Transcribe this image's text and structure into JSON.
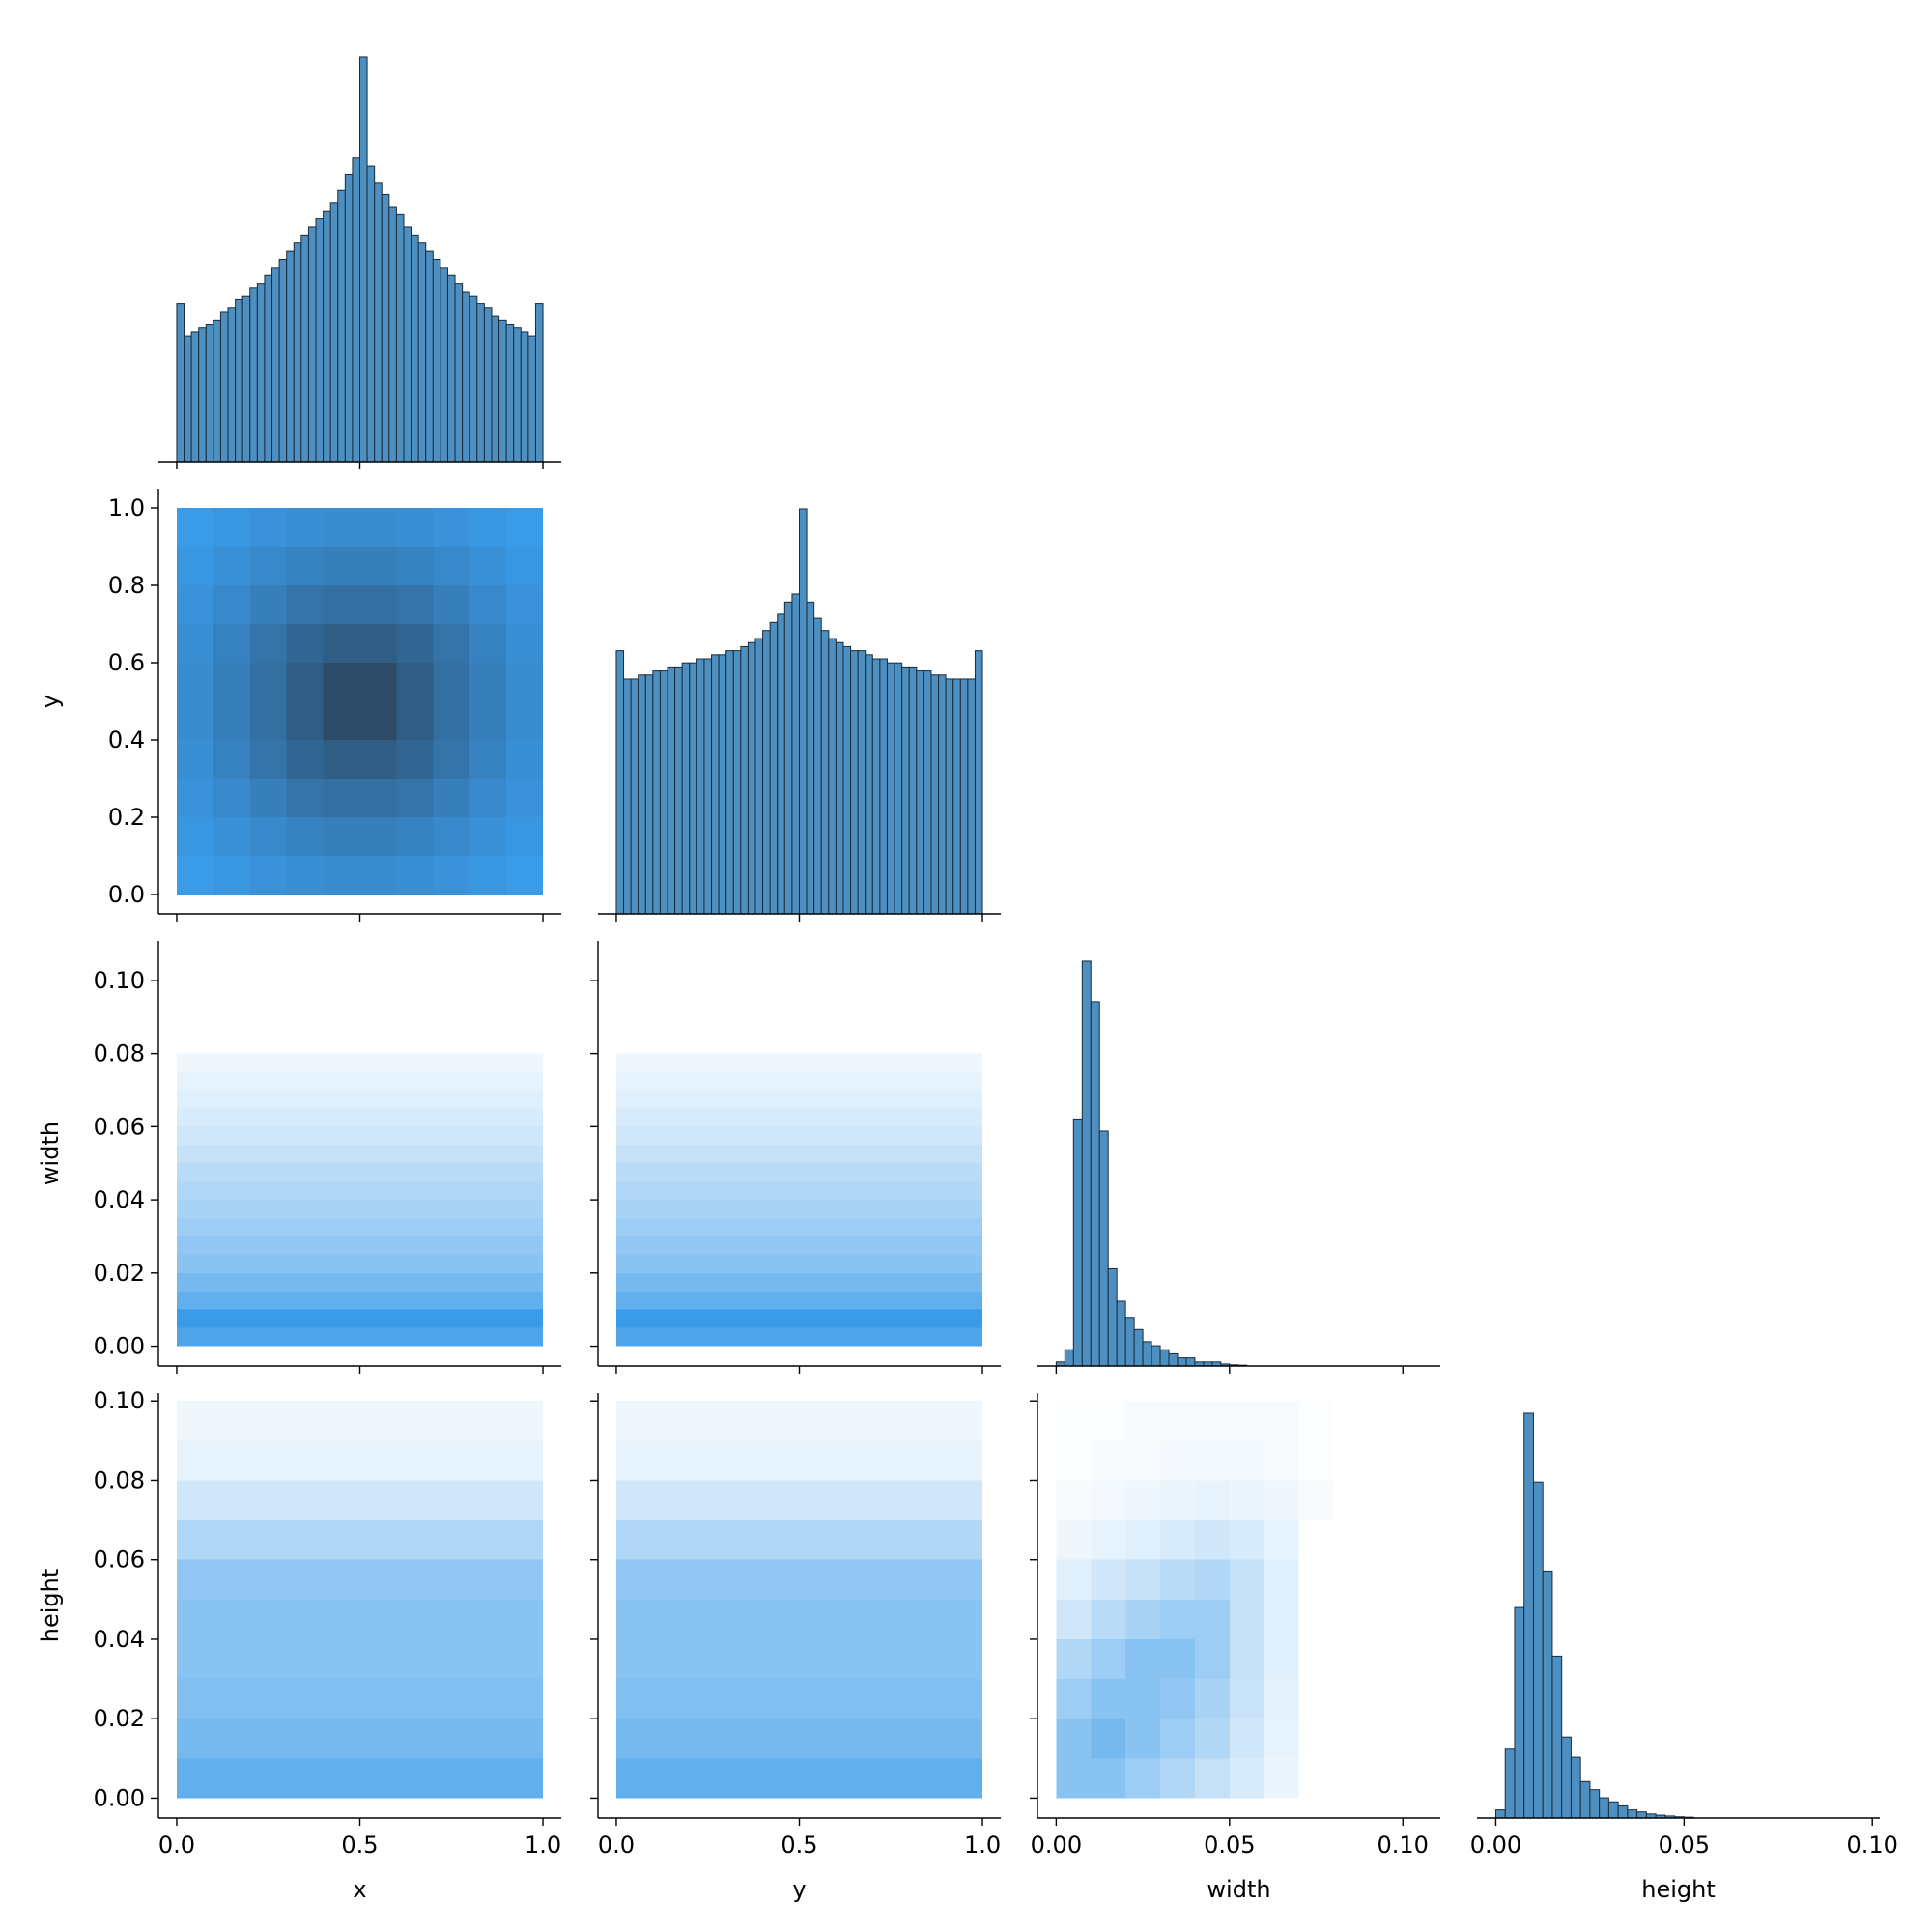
{
  "chart_data": {
    "type": "pairplot",
    "color": "#4d8fc1",
    "edge_color": "#1c2b38",
    "cmap": [
      "#ffffff",
      "#3a9be8",
      "#2c4258"
    ],
    "variables": [
      {
        "name": "x",
        "lim": [
          -0.05,
          1.05
        ],
        "xticks": [
          {
            "value": 0,
            "label": "0.0"
          },
          {
            "value": 0.5,
            "label": "0.5"
          },
          {
            "value": 1,
            "label": "1.0"
          }
        ]
      },
      {
        "name": "y",
        "lim": [
          -0.05,
          1.05
        ],
        "xticks": [
          {
            "value": 0,
            "label": "0.0"
          },
          {
            "value": 0.5,
            "label": "0.5"
          },
          {
            "value": 1,
            "label": "1.0"
          }
        ],
        "yticks": [
          {
            "value": 0,
            "label": "0.0"
          },
          {
            "value": 0.2,
            "label": "0.2"
          },
          {
            "value": 0.4,
            "label": "0.4"
          },
          {
            "value": 0.6,
            "label": "0.6"
          },
          {
            "value": 0.8,
            "label": "0.8"
          },
          {
            "value": 1,
            "label": "1.0"
          }
        ]
      },
      {
        "name": "width",
        "lim": [
          -0.0054,
          0.1108
        ],
        "xticks": [
          {
            "value": 0,
            "label": "0.00"
          },
          {
            "value": 0.05,
            "label": "0.05"
          },
          {
            "value": 0.1,
            "label": "0.10"
          }
        ],
        "yticks": [
          {
            "value": 0,
            "label": "0.00"
          },
          {
            "value": 0.02,
            "label": "0.02"
          },
          {
            "value": 0.04,
            "label": "0.04"
          },
          {
            "value": 0.06,
            "label": "0.06"
          },
          {
            "value": 0.08,
            "label": "0.08"
          },
          {
            "value": 0.1,
            "label": "0.10"
          }
        ]
      },
      {
        "name": "height",
        "lim": [
          -0.005,
          0.102
        ],
        "xticks": [
          {
            "value": 0,
            "label": "0.00"
          },
          {
            "value": 0.05,
            "label": "0.05"
          },
          {
            "value": 0.1,
            "label": "0.10"
          }
        ],
        "yticks": [
          {
            "value": 0,
            "label": "0.00"
          },
          {
            "value": 0.02,
            "label": "0.02"
          },
          {
            "value": 0.04,
            "label": "0.04"
          },
          {
            "value": 0.06,
            "label": "0.06"
          },
          {
            "value": 0.08,
            "label": "0.08"
          },
          {
            "value": 0.1,
            "label": "0.10"
          }
        ]
      }
    ],
    "histograms": [
      {
        "ylim": [
          0,
          105
        ],
        "bins": [
          0,
          0.02,
          0.04,
          0.06,
          0.08,
          0.1,
          0.12,
          0.14,
          0.16,
          0.18,
          0.2,
          0.22,
          0.24,
          0.26,
          0.28,
          0.3,
          0.32,
          0.34,
          0.36,
          0.38,
          0.4,
          0.42,
          0.44,
          0.46,
          0.48,
          0.5,
          0.52,
          0.54,
          0.56,
          0.58,
          0.6,
          0.62,
          0.64,
          0.66,
          0.68,
          0.7,
          0.72,
          0.74,
          0.76,
          0.78,
          0.8,
          0.82,
          0.84,
          0.86,
          0.88,
          0.9,
          0.92,
          0.94,
          0.96,
          0.98,
          1.0
        ],
        "counts": [
          39,
          31,
          32,
          33,
          34,
          35,
          37,
          38,
          40,
          41,
          43,
          44,
          46,
          48,
          50,
          52,
          54,
          56,
          58,
          60,
          62,
          64,
          67,
          71,
          75,
          100,
          73,
          69,
          66,
          63,
          61,
          58,
          56,
          54,
          52,
          50,
          48,
          46,
          44,
          42,
          41,
          39,
          38,
          36,
          35,
          34,
          33,
          32,
          31,
          39
        ]
      },
      {
        "ylim": [
          0,
          105
        ],
        "bins": [
          0,
          0.02,
          0.04,
          0.06,
          0.08,
          0.1,
          0.12,
          0.14,
          0.16,
          0.18,
          0.2,
          0.22,
          0.24,
          0.26,
          0.28,
          0.3,
          0.32,
          0.34,
          0.36,
          0.38,
          0.4,
          0.42,
          0.44,
          0.46,
          0.48,
          0.5,
          0.52,
          0.54,
          0.56,
          0.58,
          0.6,
          0.62,
          0.64,
          0.66,
          0.68,
          0.7,
          0.72,
          0.74,
          0.76,
          0.78,
          0.8,
          0.82,
          0.84,
          0.86,
          0.88,
          0.9,
          0.92,
          0.94,
          0.96,
          0.98,
          1.0
        ],
        "counts": [
          65,
          58,
          58,
          59,
          59,
          60,
          60,
          61,
          61,
          62,
          62,
          63,
          63,
          64,
          64,
          65,
          65,
          66,
          67,
          68,
          70,
          72,
          74,
          77,
          79,
          100,
          77,
          73,
          70,
          68,
          67,
          66,
          65,
          65,
          64,
          63,
          63,
          62,
          62,
          61,
          61,
          60,
          60,
          59,
          59,
          58,
          58,
          58,
          58,
          65
        ]
      },
      {
        "ylim": [
          0,
          105
        ],
        "bins": [
          0,
          0.0025,
          0.005,
          0.0075,
          0.01,
          0.0125,
          0.015,
          0.0175,
          0.02,
          0.0225,
          0.025,
          0.0275,
          0.03,
          0.0325,
          0.035,
          0.0375,
          0.04,
          0.0425,
          0.045,
          0.0475,
          0.05,
          0.0525,
          0.055
        ],
        "counts": [
          1,
          4,
          61,
          100,
          90,
          58,
          24,
          16,
          12,
          9,
          6,
          5,
          4,
          3,
          2,
          2,
          1,
          1,
          1,
          0.5,
          0.3,
          0.2
        ]
      },
      {
        "ylim": [
          0,
          105
        ],
        "bins": [
          0,
          0.0025,
          0.005,
          0.0075,
          0.01,
          0.0125,
          0.015,
          0.0175,
          0.02,
          0.0225,
          0.025,
          0.0275,
          0.03,
          0.0325,
          0.035,
          0.0375,
          0.04,
          0.0425,
          0.045,
          0.0475,
          0.05,
          0.0525
        ],
        "counts": [
          2,
          17,
          52,
          100,
          83,
          61,
          40,
          20,
          15,
          9,
          7,
          5,
          4,
          3,
          2,
          1.5,
          1,
          0.7,
          0.5,
          0.3,
          0.2
        ]
      }
    ],
    "hist2d": [
      {
        "xbins": [
          0,
          0.1,
          0.2,
          0.3,
          0.4,
          0.5,
          0.6,
          0.7,
          0.8,
          0.9,
          1.0
        ],
        "ybins": [
          0,
          0.1,
          0.2,
          0.3,
          0.4,
          0.5,
          0.6,
          0.7,
          0.8,
          0.9,
          1.0
        ],
        "values": [
          [
            0.5,
            0.52,
            0.55,
            0.57,
            0.58,
            0.58,
            0.57,
            0.55,
            0.52,
            0.5
          ],
          [
            0.52,
            0.56,
            0.6,
            0.64,
            0.66,
            0.66,
            0.64,
            0.6,
            0.56,
            0.52
          ],
          [
            0.55,
            0.6,
            0.66,
            0.72,
            0.75,
            0.75,
            0.72,
            0.66,
            0.6,
            0.55
          ],
          [
            0.57,
            0.64,
            0.72,
            0.8,
            0.85,
            0.85,
            0.8,
            0.72,
            0.64,
            0.57
          ],
          [
            0.58,
            0.66,
            0.75,
            0.85,
            0.95,
            0.95,
            0.85,
            0.75,
            0.66,
            0.58
          ],
          [
            0.58,
            0.66,
            0.75,
            0.85,
            0.95,
            0.95,
            0.85,
            0.75,
            0.66,
            0.58
          ],
          [
            0.57,
            0.64,
            0.72,
            0.8,
            0.85,
            0.85,
            0.8,
            0.72,
            0.64,
            0.57
          ],
          [
            0.55,
            0.6,
            0.66,
            0.72,
            0.75,
            0.75,
            0.72,
            0.66,
            0.6,
            0.55
          ],
          [
            0.52,
            0.56,
            0.6,
            0.64,
            0.66,
            0.66,
            0.64,
            0.6,
            0.56,
            0.52
          ],
          [
            0.5,
            0.52,
            0.55,
            0.57,
            0.58,
            0.58,
            0.57,
            0.55,
            0.52,
            0.5
          ]
        ]
      },
      {
        "xbins": [
          0,
          0.25,
          0.5,
          0.75,
          1.0
        ],
        "ybins": [
          0,
          0.005,
          0.01,
          0.015,
          0.02,
          0.025,
          0.03,
          0.035,
          0.04,
          0.045,
          0.05,
          0.055,
          0.06,
          0.065,
          0.07,
          0.075,
          0.08
        ],
        "values": [
          [
            0.45,
            0.45,
            0.45,
            0.45
          ],
          [
            0.5,
            0.5,
            0.5,
            0.5
          ],
          [
            0.4,
            0.4,
            0.4,
            0.4
          ],
          [
            0.35,
            0.35,
            0.35,
            0.35
          ],
          [
            0.3,
            0.3,
            0.3,
            0.3
          ],
          [
            0.28,
            0.28,
            0.28,
            0.28
          ],
          [
            0.25,
            0.25,
            0.25,
            0.25
          ],
          [
            0.22,
            0.22,
            0.22,
            0.22
          ],
          [
            0.2,
            0.2,
            0.2,
            0.2
          ],
          [
            0.18,
            0.18,
            0.18,
            0.18
          ],
          [
            0.15,
            0.15,
            0.15,
            0.15
          ],
          [
            0.12,
            0.12,
            0.12,
            0.12
          ],
          [
            0.1,
            0.1,
            0.1,
            0.1
          ],
          [
            0.08,
            0.08,
            0.08,
            0.08
          ],
          [
            0.06,
            0.06,
            0.06,
            0.06
          ],
          [
            0.04,
            0.04,
            0.04,
            0.04
          ]
        ]
      },
      {
        "xbins": [
          0,
          0.25,
          0.5,
          0.75,
          1.0
        ],
        "ybins": [
          0,
          0.005,
          0.01,
          0.015,
          0.02,
          0.025,
          0.03,
          0.035,
          0.04,
          0.045,
          0.05,
          0.055,
          0.06,
          0.065,
          0.07,
          0.075,
          0.08
        ],
        "values": [
          [
            0.45,
            0.45,
            0.45,
            0.45
          ],
          [
            0.5,
            0.5,
            0.5,
            0.5
          ],
          [
            0.4,
            0.4,
            0.4,
            0.4
          ],
          [
            0.35,
            0.35,
            0.35,
            0.35
          ],
          [
            0.3,
            0.3,
            0.3,
            0.3
          ],
          [
            0.28,
            0.28,
            0.28,
            0.28
          ],
          [
            0.25,
            0.25,
            0.25,
            0.25
          ],
          [
            0.22,
            0.22,
            0.22,
            0.22
          ],
          [
            0.2,
            0.2,
            0.2,
            0.2
          ],
          [
            0.18,
            0.18,
            0.18,
            0.18
          ],
          [
            0.15,
            0.15,
            0.15,
            0.15
          ],
          [
            0.12,
            0.12,
            0.12,
            0.12
          ],
          [
            0.1,
            0.1,
            0.1,
            0.1
          ],
          [
            0.08,
            0.08,
            0.08,
            0.08
          ],
          [
            0.06,
            0.06,
            0.06,
            0.06
          ],
          [
            0.04,
            0.04,
            0.04,
            0.04
          ]
        ]
      },
      {
        "xbins": [
          0,
          0.25,
          0.5,
          0.75,
          1.0
        ],
        "ybins": [
          0,
          0.01,
          0.02,
          0.03,
          0.04,
          0.05,
          0.06,
          0.07,
          0.08,
          0.09,
          0.1
        ],
        "values": [
          [
            0.4,
            0.4,
            0.4,
            0.4
          ],
          [
            0.35,
            0.35,
            0.35,
            0.35
          ],
          [
            0.32,
            0.32,
            0.32,
            0.32
          ],
          [
            0.3,
            0.3,
            0.3,
            0.3
          ],
          [
            0.3,
            0.3,
            0.3,
            0.3
          ],
          [
            0.28,
            0.28,
            0.28,
            0.28
          ],
          [
            0.2,
            0.2,
            0.2,
            0.2
          ],
          [
            0.12,
            0.12,
            0.12,
            0.12
          ],
          [
            0.06,
            0.06,
            0.06,
            0.06
          ],
          [
            0.04,
            0.04,
            0.04,
            0.04
          ]
        ]
      },
      {
        "xbins": [
          0,
          0.25,
          0.5,
          0.75,
          1.0
        ],
        "ybins": [
          0,
          0.01,
          0.02,
          0.03,
          0.04,
          0.05,
          0.06,
          0.07,
          0.08,
          0.09,
          0.1
        ],
        "values": [
          [
            0.4,
            0.4,
            0.4,
            0.4
          ],
          [
            0.35,
            0.35,
            0.35,
            0.35
          ],
          [
            0.32,
            0.32,
            0.32,
            0.32
          ],
          [
            0.3,
            0.3,
            0.3,
            0.3
          ],
          [
            0.3,
            0.3,
            0.3,
            0.3
          ],
          [
            0.28,
            0.28,
            0.28,
            0.28
          ],
          [
            0.2,
            0.2,
            0.2,
            0.2
          ],
          [
            0.12,
            0.12,
            0.12,
            0.12
          ],
          [
            0.06,
            0.06,
            0.06,
            0.06
          ],
          [
            0.04,
            0.04,
            0.04,
            0.04
          ]
        ]
      },
      {
        "xbins": [
          0,
          0.01,
          0.02,
          0.03,
          0.04,
          0.05,
          0.06,
          0.07,
          0.08
        ],
        "ybins": [
          0,
          0.01,
          0.02,
          0.03,
          0.04,
          0.05,
          0.06,
          0.07,
          0.08,
          0.09,
          0.1
        ],
        "values": [
          [
            0.3,
            0.3,
            0.25,
            0.2,
            0.15,
            0.1,
            0.05,
            0
          ],
          [
            0.3,
            0.35,
            0.3,
            0.25,
            0.2,
            0.12,
            0.06,
            0
          ],
          [
            0.25,
            0.3,
            0.3,
            0.28,
            0.22,
            0.14,
            0.07,
            0
          ],
          [
            0.2,
            0.25,
            0.3,
            0.3,
            0.25,
            0.15,
            0.08,
            0
          ],
          [
            0.12,
            0.18,
            0.22,
            0.25,
            0.25,
            0.15,
            0.08,
            0
          ],
          [
            0.08,
            0.12,
            0.15,
            0.18,
            0.2,
            0.15,
            0.08,
            0
          ],
          [
            0.04,
            0.06,
            0.08,
            0.1,
            0.12,
            0.1,
            0.06,
            0
          ],
          [
            0.02,
            0.03,
            0.04,
            0.05,
            0.06,
            0.05,
            0.04,
            0.02
          ],
          [
            0.01,
            0.02,
            0.02,
            0.03,
            0.03,
            0.03,
            0.02,
            0.01
          ],
          [
            0.01,
            0.01,
            0.02,
            0.02,
            0.02,
            0.02,
            0.02,
            0.01
          ]
        ]
      }
    ]
  }
}
